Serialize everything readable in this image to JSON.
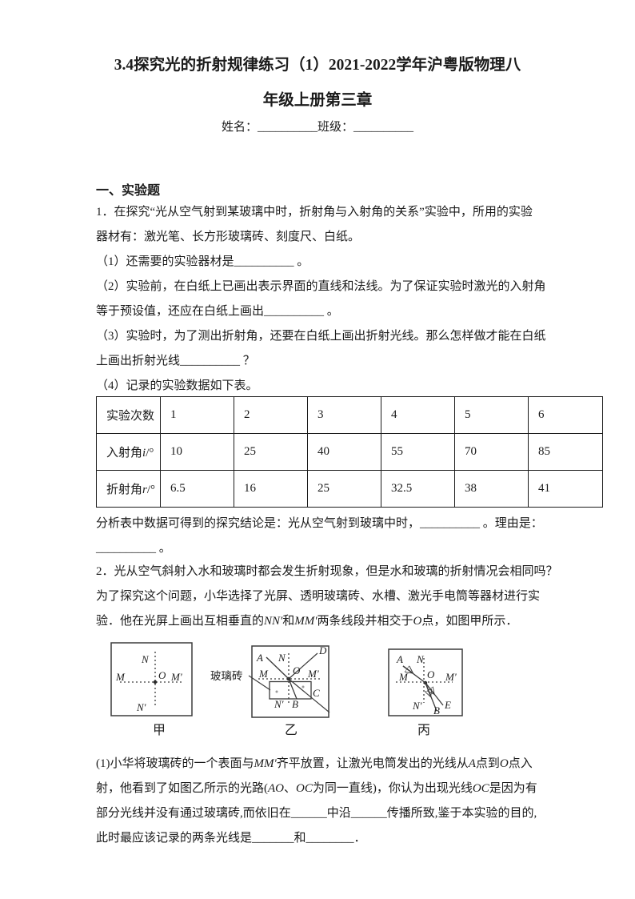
{
  "ink_color": "#1b1b1b",
  "header": {
    "title_line1": "3.4探究光的折射规律练习（1）2021-2022学年沪粤版物理八",
    "title_line2": "年级上册第三章",
    "name_class_line": "姓名：__________班级：__________"
  },
  "section": {
    "heading": "一、实验题"
  },
  "q1": {
    "lines": [
      "1．在探究“光从空气射到某玻璃中时，折射角与入射角的关系”实验中，所用的实验",
      "器材有：激光笔、长方形玻璃砖、刻度尺、白纸。",
      "（1）还需要的实验器材是__________ 。",
      "（2）实验前，在白纸上已画出表示界面的直线和法线。为了保证实验时激光的入射角",
      "等于预设值，还应在白纸上画出__________ 。",
      "（3）实验时，为了测出折射角，还要在白纸上画出折射光线。那么怎样做才能在白纸",
      "上画出折射光线__________ ？",
      "（4）记录的实验数据如下表。"
    ]
  },
  "table": {
    "rows": [
      [
        "实验次数",
        "1",
        "2",
        "3",
        "4",
        "5",
        "6"
      ],
      [
        "入射角i/°",
        "10",
        "25",
        "40",
        "55",
        "70",
        "85"
      ],
      [
        "折射角r/°",
        "6.5",
        "16",
        "25",
        "32.5",
        "38",
        "41"
      ]
    ]
  },
  "conclusion": {
    "lines": [
      "分析表中数据可得到的探究结论是：光从空气射到玻璃中时，__________ 。理由是：",
      "__________ 。"
    ]
  },
  "q2": {
    "lines": [
      "2．光从空气斜射入水和玻璃时都会发生折射现象，但是水和玻璃的折射情况会相同吗？",
      "为了探究这个问题，小华选择了光屏、透明玻璃砖、水槽、激光手电筒等器材进行实",
      "验．他在光屏上画出互相垂直的NN'和MM'两条线段并相交于O点，如图甲所示．"
    ]
  },
  "figures": {
    "jia": {
      "caption": "甲",
      "n": "N",
      "m": "M",
      "o": "O",
      "m_prime": "M'",
      "n_prime": "N'"
    },
    "yi": {
      "caption": "乙",
      "glass_label": "玻璃砖",
      "a": "A",
      "n": "N",
      "d": "D",
      "m": "M",
      "o": "O",
      "m_prime": "M'",
      "c": "C",
      "n_prime": "N'",
      "b": "B"
    },
    "bing": {
      "caption": "丙",
      "a": "A",
      "n": "N",
      "m": "M",
      "o": "O",
      "m_prime": "M'",
      "n_prime": "N'",
      "e": "E",
      "b": "B"
    }
  },
  "part1": {
    "lines": [
      "(1)小华将玻璃砖的一个表面与MM'齐平放置，让激光电筒发出的光线从A点到O点入",
      "射，他看到了如图乙所示的光路(AO、OC为同一直线)，你认为出现光线OC是因为有",
      "部分光线并没有通过玻璃砖,而依旧在______中沿______传播所致,鉴于本实验的目的,",
      "此时最应该记录的两条光线是_______和________．"
    ]
  }
}
